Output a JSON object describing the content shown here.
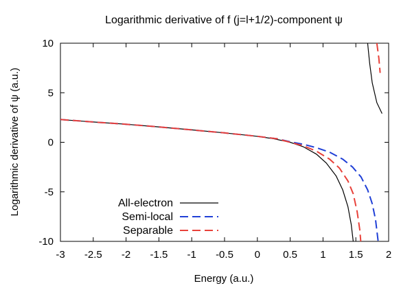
{
  "chart_data": {
    "type": "line",
    "title": "Logarithmic derivative of f (j=l+1/2)-component ψ",
    "xlabel": "Energy (a.u.)",
    "ylabel": "Logarithmic derivative of ψ (a.u.)",
    "xlim": [
      -3,
      2
    ],
    "ylim": [
      -10,
      10
    ],
    "xticks": [
      "-3",
      "-2.5",
      "-2",
      "-1.5",
      "-1",
      "-0.5",
      "0",
      "0.5",
      "1",
      "1.5",
      "2"
    ],
    "yticks": [
      "-10",
      "-5",
      "0",
      "5",
      "10"
    ],
    "grid": false,
    "legend_position": "bottom-left",
    "series": [
      {
        "name": "All-electron",
        "color": "#000000",
        "dash": "solid",
        "segments": [
          [
            [
              -3,
              2.3
            ],
            [
              -2.5,
              2.05
            ],
            [
              -2,
              1.82
            ],
            [
              -1.5,
              1.55
            ],
            [
              -1,
              1.25
            ],
            [
              -0.5,
              0.95
            ],
            [
              0,
              0.6
            ],
            [
              0.25,
              0.35
            ],
            [
              0.5,
              0.0
            ],
            [
              0.7,
              -0.45
            ],
            [
              0.9,
              -1.2
            ],
            [
              1.05,
              -2.1
            ],
            [
              1.2,
              -3.4
            ],
            [
              1.3,
              -4.8
            ],
            [
              1.38,
              -6.5
            ],
            [
              1.43,
              -8.3
            ],
            [
              1.46,
              -10
            ]
          ],
          [
            [
              1.68,
              10
            ],
            [
              1.71,
              8.0
            ],
            [
              1.75,
              6.0
            ],
            [
              1.82,
              4.0
            ],
            [
              1.9,
              2.9
            ]
          ]
        ]
      },
      {
        "name": "Semi-local",
        "color": "#1f3fd6",
        "dash": "long",
        "segments": [
          [
            [
              -3,
              2.3
            ],
            [
              -2.5,
              2.05
            ],
            [
              -2,
              1.82
            ],
            [
              -1.5,
              1.55
            ],
            [
              -1,
              1.25
            ],
            [
              -0.5,
              0.95
            ],
            [
              0,
              0.6
            ],
            [
              0.3,
              0.35
            ],
            [
              0.5,
              0.05
            ],
            [
              0.7,
              -0.2
            ],
            [
              0.9,
              -0.55
            ],
            [
              1.1,
              -1.0
            ],
            [
              1.3,
              -1.7
            ],
            [
              1.45,
              -2.5
            ],
            [
              1.58,
              -3.5
            ],
            [
              1.68,
              -4.8
            ],
            [
              1.75,
              -6.2
            ],
            [
              1.8,
              -7.8
            ],
            [
              1.84,
              -10
            ]
          ]
        ]
      },
      {
        "name": "Separable",
        "color": "#e8413a",
        "dash": "long",
        "segments": [
          [
            [
              -3,
              2.3
            ],
            [
              -2.5,
              2.05
            ],
            [
              -2,
              1.82
            ],
            [
              -1.5,
              1.55
            ],
            [
              -1,
              1.25
            ],
            [
              -0.5,
              0.95
            ],
            [
              0,
              0.6
            ],
            [
              0.3,
              0.35
            ],
            [
              0.5,
              0.0
            ],
            [
              0.7,
              -0.35
            ],
            [
              0.9,
              -0.9
            ],
            [
              1.1,
              -1.7
            ],
            [
              1.25,
              -2.6
            ],
            [
              1.38,
              -3.9
            ],
            [
              1.46,
              -5.2
            ],
            [
              1.52,
              -7.0
            ],
            [
              1.56,
              -8.8
            ],
            [
              1.575,
              -10
            ]
          ],
          [
            [
              1.82,
              10
            ],
            [
              1.85,
              8.5
            ],
            [
              1.87,
              7.0
            ]
          ]
        ]
      }
    ]
  }
}
